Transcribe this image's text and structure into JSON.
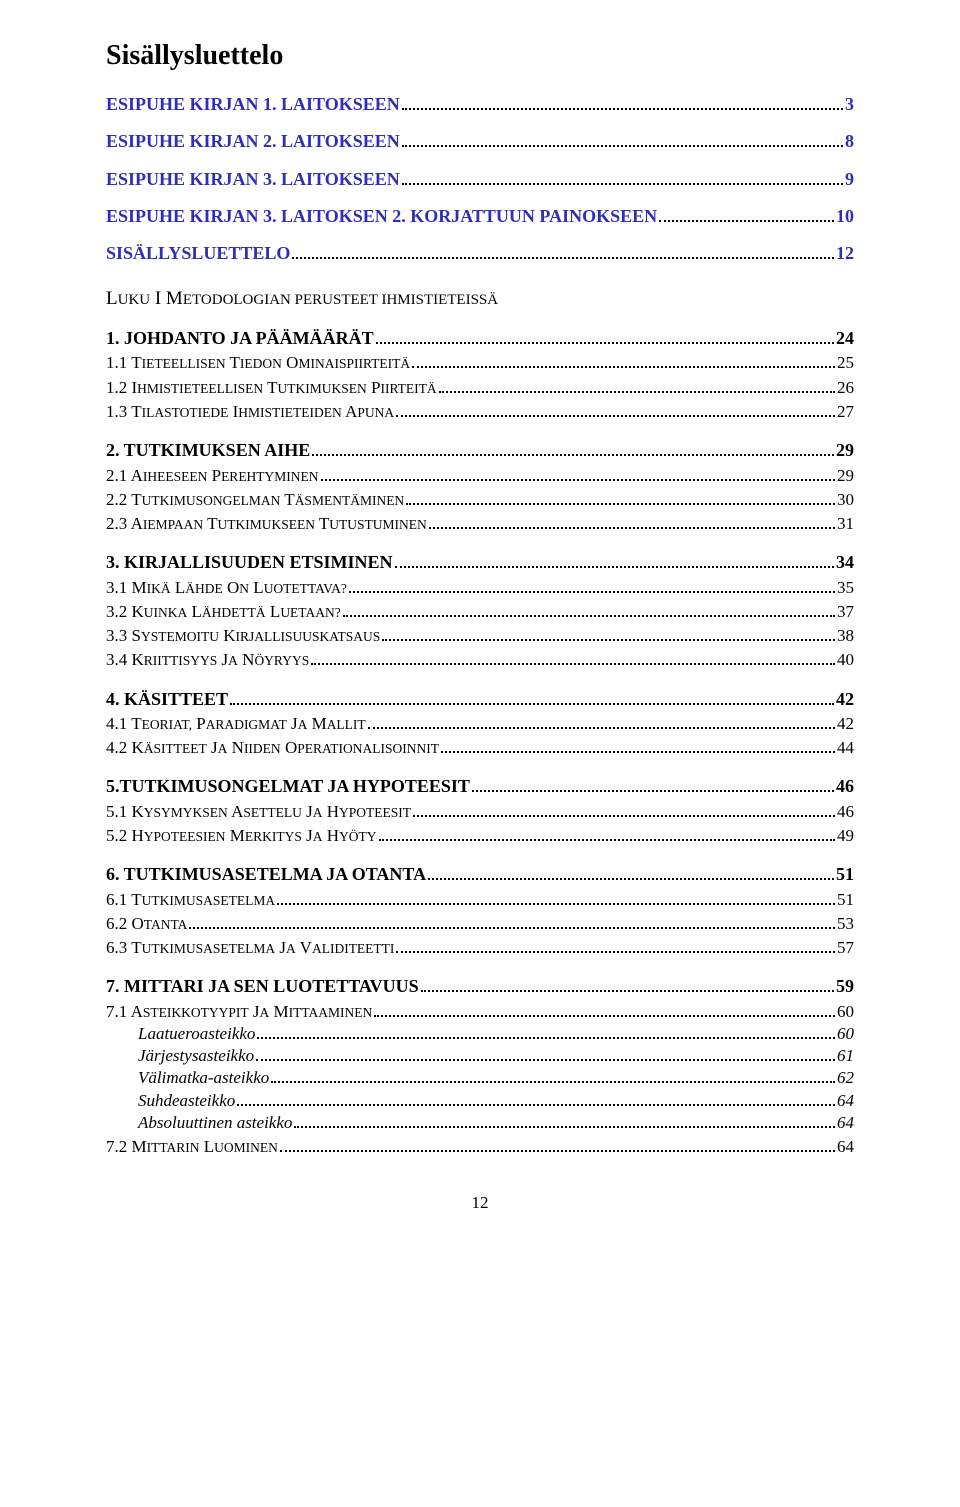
{
  "title": "Sisällysluettelo",
  "colors": {
    "link": "#2e2eb8",
    "text": "#000000",
    "bg": "#ffffff"
  },
  "page_number": "12",
  "entries": [
    {
      "level": "h1",
      "label": "ESIPUHE KIRJAN 1. LAITOKSEEN",
      "page": "3"
    },
    {
      "level": "h1",
      "label": "ESIPUHE KIRJAN 2. LAITOKSEEN",
      "page": "8"
    },
    {
      "level": "h1",
      "label": "ESIPUHE KIRJAN 3. LAITOKSEEN",
      "page": "9"
    },
    {
      "level": "h1",
      "label": "ESIPUHE KIRJAN 3. LAITOKSEN 2. KORJATTUUN PAINOKSEEN",
      "page": "10"
    },
    {
      "level": "h1",
      "label": "SISÄLLYSLUETTELO",
      "page": "12"
    },
    {
      "level": "part",
      "label_plain": "L",
      "label_sc": "UKU",
      "label_plain2": " I M",
      "label_sc2": "ETODOLOGIAN PERUSTEET IHMISTIETEISSÄ"
    },
    {
      "level": "h2",
      "label": "1. JOHDANTO JA PÄÄMÄÄRÄT",
      "page": "24"
    },
    {
      "level": "h3",
      "label": "1.1 Tieteellisen tiedon ominaispiirteitä",
      "page": "25"
    },
    {
      "level": "h3",
      "label": "1.2 Ihmistieteellisen tutkimuksen piirteitä",
      "page": "26"
    },
    {
      "level": "h3",
      "label": "1.3 Tilastotiede ihmistieteiden apuna",
      "page": "27"
    },
    {
      "level": "h2",
      "label": "2. TUTKIMUKSEN AIHE",
      "page": "29"
    },
    {
      "level": "h3",
      "label": "2.1 Aiheeseen perehtyminen",
      "page": "29"
    },
    {
      "level": "h3",
      "label": "2.2 Tutkimusongelman täsmentäminen",
      "page": "30"
    },
    {
      "level": "h3",
      "label": "2.3 Aiempaan tutkimukseen tutustuminen",
      "page": "31"
    },
    {
      "level": "h2",
      "label": "3. KIRJALLISUUDEN ETSIMINEN",
      "page": "34"
    },
    {
      "level": "h3",
      "label": "3.1 Mikä lähde on luotettava?",
      "page": "35"
    },
    {
      "level": "h3",
      "label": "3.2 Kuinka lähdettä luetaan?",
      "page": "37"
    },
    {
      "level": "h3",
      "label": "3.3 Systemoitu kirjallisuuskatsaus",
      "page": "38"
    },
    {
      "level": "h3",
      "label": "3.4 Kriittisyys ja nöyryys",
      "page": "40"
    },
    {
      "level": "h2",
      "label": "4. KÄSITTEET",
      "page": "42"
    },
    {
      "level": "h3",
      "label": "4.1 Teoriat, paradigmat ja mallit",
      "page": "42"
    },
    {
      "level": "h3",
      "label": "4.2 Käsitteet ja niiden operationalisoinnit",
      "page": "44"
    },
    {
      "level": "h2",
      "label": "5.TUTKIMUSONGELMAT JA HYPOTEESIT",
      "page": "46"
    },
    {
      "level": "h3",
      "label": "5.1 Kysymyksen asettelu ja hypoteesit",
      "page": "46"
    },
    {
      "level": "h3",
      "label": "5.2 Hypoteesien merkitys ja hyöty",
      "page": "49"
    },
    {
      "level": "h2",
      "label": "6. TUTKIMUSASETELMA JA OTANTA",
      "page": "51"
    },
    {
      "level": "h3",
      "label": "6.1 Tutkimusasetelma",
      "page": "51"
    },
    {
      "level": "h3",
      "label": "6.2 Otanta",
      "page": "53"
    },
    {
      "level": "h3",
      "label": "6.3 Tutkimusasetelma ja validiteetti",
      "page": "57"
    },
    {
      "level": "h2",
      "label": "7. MITTARI JA SEN LUOTETTAVUUS",
      "page": "59"
    },
    {
      "level": "h3",
      "label": "7.1 Asteikkotyypit ja mittaaminen",
      "page": "60"
    },
    {
      "level": "h4",
      "label": "Laatueroasteikko",
      "page": "60"
    },
    {
      "level": "h4",
      "label": "Järjestysasteikko",
      "page": "61"
    },
    {
      "level": "h4",
      "label": "Välimatka-asteikko",
      "page": "62"
    },
    {
      "level": "h4",
      "label": "Suhdeasteikko",
      "page": "64"
    },
    {
      "level": "h4",
      "label": "Absoluuttinen asteikko",
      "page": "64"
    },
    {
      "level": "h3",
      "label": "7.2 Mittarin luominen",
      "page": "64"
    }
  ]
}
